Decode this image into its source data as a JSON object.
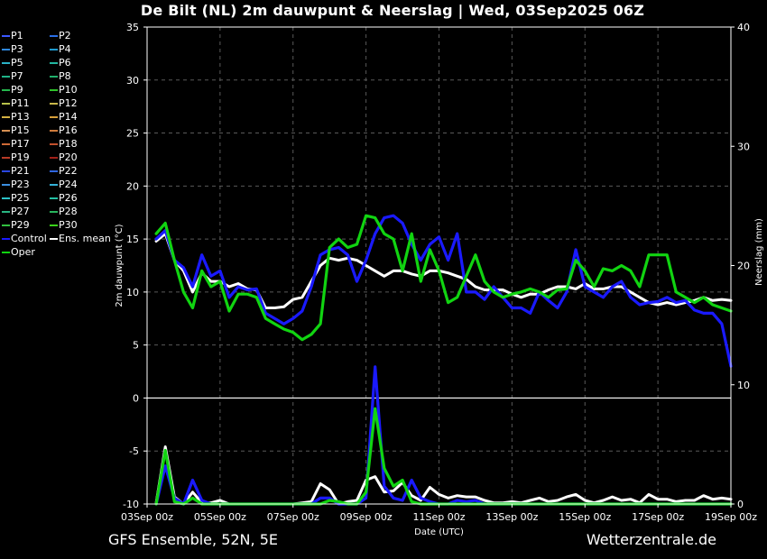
{
  "title": "De Bilt  (NL)  2m dauwpunt & Neerslag | Wed, 03Sep2025 06Z",
  "footer": {
    "left": "GFS Ensemble, 52N, 5E",
    "right": "Wetterzentrale.de"
  },
  "legend": [
    {
      "label": "P1",
      "color": "#3b58ff"
    },
    {
      "label": "P2",
      "color": "#2a6fe8"
    },
    {
      "label": "P3",
      "color": "#2f88dd"
    },
    {
      "label": "P4",
      "color": "#1f9bd0"
    },
    {
      "label": "P5",
      "color": "#2ab3c8"
    },
    {
      "label": "P6",
      "color": "#23b7a0"
    },
    {
      "label": "P7",
      "color": "#1fb387"
    },
    {
      "label": "P8",
      "color": "#21b06b"
    },
    {
      "label": "P9",
      "color": "#25b84e"
    },
    {
      "label": "P10",
      "color": "#2fc22a"
    },
    {
      "label": "P11",
      "color": "#b8c24a"
    },
    {
      "label": "P12",
      "color": "#c9b84a"
    },
    {
      "label": "P13",
      "color": "#d4b142"
    },
    {
      "label": "P14",
      "color": "#d79f3a"
    },
    {
      "label": "P15",
      "color": "#d69052"
    },
    {
      "label": "P16",
      "color": "#cf7b3c"
    },
    {
      "label": "P17",
      "color": "#cf6a36"
    },
    {
      "label": "P18",
      "color": "#c2502c"
    },
    {
      "label": "P19",
      "color": "#b83a26"
    },
    {
      "label": "P20",
      "color": "#a12018"
    },
    {
      "label": "P21",
      "color": "#2a46e0"
    },
    {
      "label": "P22",
      "color": "#2f66df"
    },
    {
      "label": "P23",
      "color": "#3b8fe0"
    },
    {
      "label": "P24",
      "color": "#34b0d8"
    },
    {
      "label": "P25",
      "color": "#2cc3c8"
    },
    {
      "label": "P26",
      "color": "#24c0a4"
    },
    {
      "label": "P27",
      "color": "#28b682"
    },
    {
      "label": "P28",
      "color": "#28b45c"
    },
    {
      "label": "P29",
      "color": "#32c040"
    },
    {
      "label": "P30",
      "color": "#3ad21a"
    },
    {
      "label": "Control",
      "color": "#1a1aff"
    },
    {
      "label": "Ens. mean",
      "color": "#ffffff"
    },
    {
      "label": "Oper",
      "color": "#11d411"
    }
  ],
  "chart_data": {
    "type": "line",
    "title": "De Bilt  (NL)  2m dauwpunt & Neerslag | Wed, 03Sep2025 06Z",
    "xlabel": "Date (UTC)",
    "ylabel": "2m dauwpunt (°C)",
    "y2label": "Neerslag (mm)",
    "xlim": [
      0,
      16
    ],
    "ylim": [
      -10,
      35
    ],
    "y2lim": [
      0,
      40
    ],
    "xticks": [
      0,
      2,
      4,
      6,
      8,
      10,
      12,
      14,
      16
    ],
    "xtick_labels": [
      "03Sep 00z",
      "05Sep 00z",
      "07Sep 00z",
      "09Sep 00z",
      "11Sep 00z",
      "13Sep 00z",
      "15Sep 00z",
      "17Sep 00z",
      "19Sep 00z"
    ],
    "yticks": [
      -10,
      -5,
      0,
      5,
      10,
      15,
      20,
      25,
      30,
      35
    ],
    "ytick_labels": [
      "-10",
      "-5",
      "0",
      "5",
      "10",
      "15",
      "20",
      "25",
      "30",
      "35"
    ],
    "y2ticks": [
      0,
      10,
      20,
      30,
      40
    ],
    "y2tick_labels": [
      "0",
      "10",
      "20",
      "30",
      "40"
    ],
    "grid": true,
    "zero_line": 0,
    "legend_position": "left",
    "x_days_since_start": [
      0.25,
      0.5,
      0.75,
      1,
      1.25,
      1.5,
      1.75,
      2,
      2.25,
      2.5,
      2.75,
      3,
      3.25,
      3.5,
      3.75,
      4,
      4.25,
      4.5,
      4.75,
      5,
      5.25,
      5.5,
      5.75,
      6,
      6.25,
      6.5,
      6.75,
      7,
      7.25,
      7.5,
      7.75,
      8,
      8.25,
      8.5,
      8.75,
      9,
      9.25,
      9.5,
      9.75,
      10,
      10.25,
      10.5,
      10.75,
      11,
      11.25,
      11.5,
      11.75,
      12,
      12.25,
      12.5,
      12.75,
      13,
      13.25,
      13.5,
      13.75,
      14,
      14.25,
      14.5,
      14.75,
      15,
      15.25,
      15.5,
      15.75,
      16
    ],
    "series": [
      {
        "name": "Ens. mean",
        "axis": "left",
        "color": "#ffffff",
        "values": [
          14.8,
          15.5,
          13,
          12,
          10,
          11.8,
          11,
          11,
          10.5,
          10.8,
          10.3,
          10.2,
          8.5,
          8.5,
          8.6,
          9.3,
          9.5,
          11,
          12.5,
          13.2,
          13,
          13.2,
          13,
          12.5,
          12,
          11.5,
          12,
          12,
          11.7,
          11.5,
          12,
          12,
          11.8,
          11.5,
          11.2,
          10.5,
          10.2,
          10.2,
          10.2,
          9.8,
          9.5,
          9.8,
          9.8,
          10.2,
          10.5,
          10.5,
          10.3,
          10.8,
          10.3,
          10.3,
          10.5,
          10.5,
          10,
          9.5,
          9,
          8.8,
          9,
          8.8,
          9,
          9.2,
          9.5,
          9.2,
          9.3,
          9.2
        ]
      },
      {
        "name": "Control",
        "axis": "left",
        "color": "#1a1aff",
        "values": [
          15,
          15.8,
          13,
          12.3,
          10.5,
          13.5,
          11.5,
          12,
          9.5,
          10.5,
          10.2,
          10.3,
          8,
          7.5,
          7,
          7.5,
          8.2,
          10.5,
          13.5,
          14,
          14.2,
          13.5,
          11,
          13,
          15.5,
          17,
          17.2,
          16.5,
          14.5,
          13,
          14.5,
          15.2,
          13,
          15.5,
          10,
          10,
          9.3,
          10.5,
          9.5,
          8.5,
          8.5,
          8,
          10,
          9.2,
          8.5,
          10,
          14,
          10.5,
          10,
          9.5,
          10.5,
          11,
          9.5,
          8.8,
          9,
          9.1,
          9.5,
          9,
          9.2,
          8.3,
          8,
          8,
          7,
          3
        ]
      },
      {
        "name": "Oper",
        "axis": "left",
        "color": "#11d411",
        "values": [
          15.5,
          16.5,
          13,
          10,
          8.5,
          12,
          10.5,
          11,
          8.2,
          9.8,
          9.8,
          9.5,
          7.5,
          7,
          6.5,
          6.2,
          5.5,
          6,
          7,
          14.2,
          15,
          14.2,
          14.5,
          17.2,
          17,
          15.5,
          15,
          12,
          15.5,
          11,
          14,
          12,
          9,
          9.5,
          11.5,
          13.5,
          11,
          10,
          9.5,
          9.8,
          10,
          10.3,
          10,
          9.5,
          10.2,
          10.3,
          13,
          12,
          10.5,
          12.2,
          12,
          12.5,
          12,
          10.5,
          13.5,
          13.5,
          13.5,
          10,
          9.5,
          9,
          9.5,
          8.8,
          8.5,
          8.2
        ]
      },
      {
        "name": "Ens. mean precip",
        "axis": "right",
        "color": "#ffffff",
        "values": [
          0.1,
          4.8,
          0.6,
          0,
          1,
          0.1,
          0.1,
          0.3,
          0,
          0,
          0,
          0,
          0,
          0,
          0,
          0,
          0.1,
          0.2,
          1.7,
          1.2,
          0,
          0.2,
          0.3,
          2,
          2.3,
          1,
          1.1,
          1.8,
          0.7,
          0.3,
          1.4,
          0.8,
          0.5,
          0.7,
          0.6,
          0.6,
          0.3,
          0.1,
          0.1,
          0.2,
          0.1,
          0.3,
          0.5,
          0.2,
          0.3,
          0.6,
          0.8,
          0.3,
          0.1,
          0.3,
          0.6,
          0.3,
          0.4,
          0.1,
          0.8,
          0.4,
          0.4,
          0.2,
          0.3,
          0.3,
          0.7,
          0.4,
          0.5,
          0.4
        ]
      },
      {
        "name": "Control precip",
        "axis": "right",
        "color": "#1a1aff",
        "values": [
          0,
          3.2,
          0.5,
          0,
          2,
          0.3,
          0,
          0,
          0,
          0,
          0,
          0,
          0,
          0,
          0,
          0,
          0,
          0,
          0.5,
          0.5,
          0,
          0,
          0,
          0.5,
          11.5,
          1.5,
          0.5,
          0.3,
          2,
          0.5,
          0.2,
          0,
          0,
          0.3,
          0.2,
          0.3,
          0,
          0,
          0,
          0,
          0,
          0,
          0,
          0,
          0,
          0,
          0,
          0,
          0,
          0,
          0,
          0,
          0,
          0,
          0,
          0,
          0,
          0,
          0,
          0,
          0,
          0,
          0,
          0
        ]
      },
      {
        "name": "Oper precip",
        "axis": "right",
        "color": "#11d411",
        "values": [
          0,
          4.5,
          0.2,
          0,
          0.5,
          0,
          0,
          0,
          0,
          0,
          0,
          0,
          0,
          0,
          0,
          0,
          0,
          0,
          0,
          0.3,
          0.2,
          0,
          0,
          1,
          8,
          3,
          1.5,
          2,
          0.2,
          0,
          0,
          0,
          0,
          0,
          0,
          0,
          0,
          0,
          0,
          0,
          0,
          0,
          0,
          0,
          0,
          0,
          0,
          0,
          0,
          0,
          0,
          0,
          0,
          0,
          0,
          0,
          0,
          0,
          0,
          0,
          0,
          0,
          0,
          0
        ]
      }
    ]
  }
}
